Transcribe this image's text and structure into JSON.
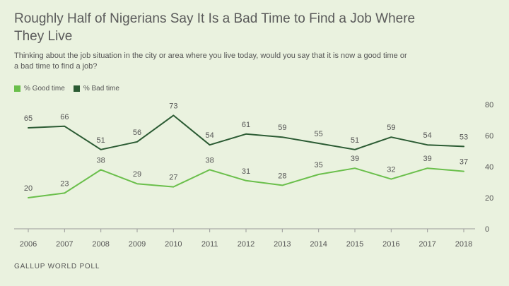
{
  "title": "Roughly Half of Nigerians Say It Is a Bad Time to Find a Job Where They Live",
  "subtitle": "Thinking about the job situation in the city or area where you live today, would you say that it is now a good time or a bad time to find a job?",
  "source": "GALLUP WORLD POLL",
  "chart_data": {
    "type": "line",
    "x": [
      "2006",
      "2007",
      "2008",
      "2009",
      "2010",
      "2011",
      "2012",
      "2013",
      "2014",
      "2015",
      "2016",
      "2017",
      "2018"
    ],
    "series": [
      {
        "name": "% Good time",
        "color": "#6abf4b",
        "values": [
          20,
          23,
          38,
          29,
          27,
          38,
          31,
          28,
          35,
          39,
          32,
          39,
          37
        ]
      },
      {
        "name": "% Bad time",
        "color": "#2b5b33",
        "values": [
          65,
          66,
          51,
          56,
          73,
          54,
          61,
          59,
          55,
          51,
          59,
          54,
          53
        ]
      }
    ],
    "ylim": [
      0,
      80
    ],
    "yticks": [
      0,
      20,
      40,
      60,
      80
    ],
    "legend_position": "top-left",
    "grid": false
  }
}
